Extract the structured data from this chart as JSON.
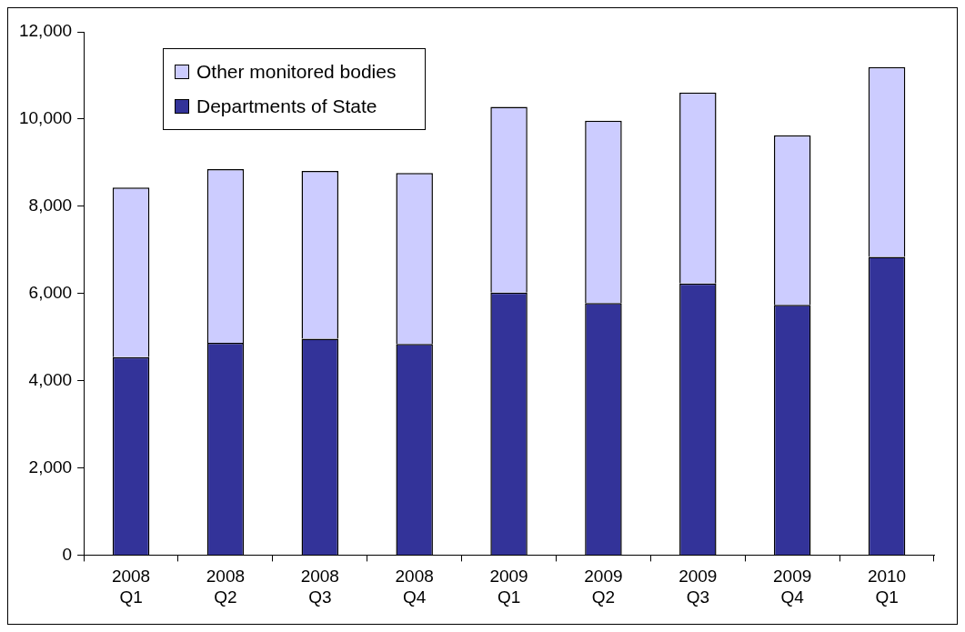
{
  "chart_data": {
    "type": "bar",
    "stacked": true,
    "categories": [
      "2008 Q1",
      "2008 Q2",
      "2008 Q3",
      "2008 Q4",
      "2009 Q1",
      "2009 Q2",
      "2009 Q3",
      "2009 Q4",
      "2010 Q1"
    ],
    "series": [
      {
        "name": "Departments of State",
        "color": "#333399",
        "values": [
          4540,
          4870,
          4960,
          4840,
          6020,
          5780,
          6230,
          5740,
          6840
        ]
      },
      {
        "name": "Other monitored bodies",
        "color": "#ccccff",
        "values": [
          3890,
          3980,
          3850,
          3920,
          4260,
          4180,
          4380,
          3890,
          4350
        ]
      }
    ],
    "ylim": [
      0,
      12000
    ],
    "yticks": [
      0,
      {
        "value": 2000,
        "label": "2,000"
      },
      {
        "value": 4000,
        "label": "4,000"
      },
      {
        "value": 6000,
        "label": "6,000"
      },
      {
        "value": 8000,
        "label": "8,000"
      },
      {
        "value": 10000,
        "label": "10,000"
      },
      {
        "value": 12000,
        "label": "12,000"
      }
    ],
    "grid": false,
    "legend": "top left"
  }
}
